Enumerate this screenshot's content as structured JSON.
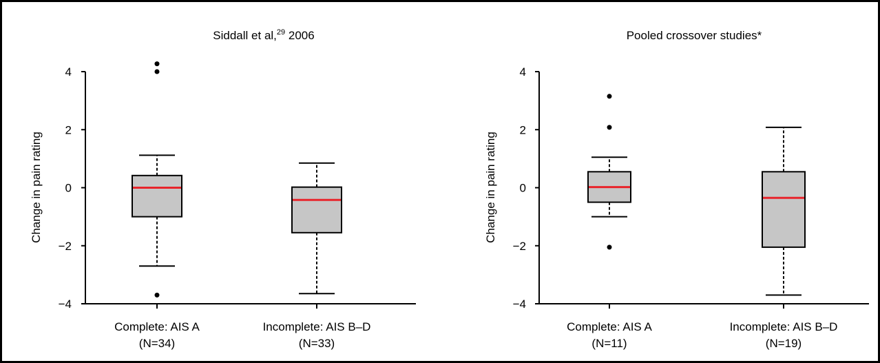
{
  "chart_data": [
    {
      "type": "box",
      "title_main": "Siddall et al,",
      "title_sup": "29",
      "title_tail": " 2006",
      "ylabel": "Change in pain rating",
      "ylim": [
        -4,
        4
      ],
      "yticks": [
        4,
        2,
        0,
        -2,
        -4
      ],
      "ytick_labels": [
        "4",
        "2",
        "0",
        "−2",
        "−4"
      ],
      "median_color": "#e8242b",
      "box_color": "#c6c6c6",
      "boxes": [
        {
          "label": "Complete: AIS A",
          "n_label": "(N=34)",
          "whisker_low": -2.7,
          "q1": -1.0,
          "median": 0.0,
          "q3": 0.42,
          "whisker_high": 1.12,
          "outliers": [
            4.27,
            4.0,
            -3.7
          ]
        },
        {
          "label": "Incomplete: AIS B–D",
          "n_label": "(N=33)",
          "whisker_low": -3.65,
          "q1": -1.55,
          "median": -0.42,
          "q3": 0.02,
          "whisker_high": 0.85,
          "outliers": []
        }
      ]
    },
    {
      "type": "box",
      "title_main": "Pooled crossover studies*",
      "title_sup": "",
      "title_tail": "",
      "ylabel": "Change in pain rating",
      "ylim": [
        -4,
        4
      ],
      "yticks": [
        4,
        2,
        0,
        -2,
        -4
      ],
      "ytick_labels": [
        "4",
        "2",
        "0",
        "−2",
        "−4"
      ],
      "median_color": "#e8242b",
      "box_color": "#c6c6c6",
      "boxes": [
        {
          "label": "Complete: AIS A",
          "n_label": "(N=11)",
          "whisker_low": -1.0,
          "q1": -0.5,
          "median": 0.02,
          "q3": 0.55,
          "whisker_high": 1.05,
          "outliers": [
            3.15,
            2.08,
            -2.05
          ]
        },
        {
          "label": "Incomplete: AIS B–D",
          "n_label": "(N=19)",
          "whisker_low": -3.7,
          "q1": -2.05,
          "median": -0.35,
          "q3": 0.55,
          "whisker_high": 2.08,
          "outliers": []
        }
      ]
    }
  ]
}
